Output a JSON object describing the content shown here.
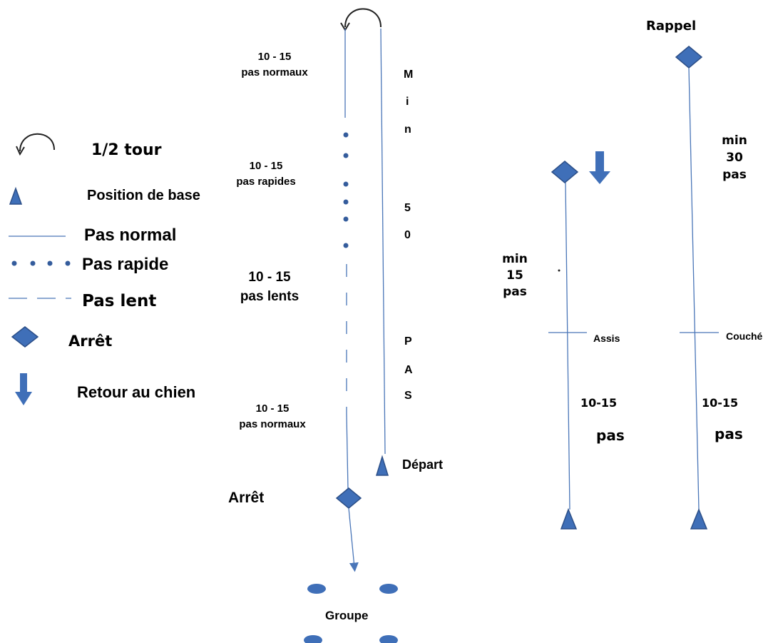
{
  "colors": {
    "line": "#4a76b8",
    "shape_fill": "#3f6fb8",
    "shape_stroke": "#2c4f88",
    "dot": "#345c9c",
    "text": "#000000"
  },
  "legend": {
    "half_turn": "1/2 tour",
    "base_position": "Position de base",
    "normal_step": "Pas normal",
    "fast_step": "Pas rapide",
    "slow_step": "Pas lent",
    "stop": "Arrêt",
    "return_to_dog": "Retour au chien"
  },
  "heel_course": {
    "segment_normal_top": {
      "count": "10 - 15",
      "label": "pas normaux"
    },
    "segment_fast": {
      "count": "10 - 15",
      "label": "pas rapides"
    },
    "segment_slow": {
      "count": "10 - 15",
      "label": "pas lents"
    },
    "segment_normal_bottom": {
      "count": "10 - 15",
      "label": "pas normaux"
    },
    "return_letters": [
      "M",
      "i",
      "n",
      "5",
      "0",
      "P",
      "A",
      "S"
    ],
    "start_label": "Départ",
    "stop_label": "Arrêt",
    "group_label": "Groupe"
  },
  "sit_exercise": {
    "top_label": "min\n15\npas",
    "mark_label": "Assis",
    "distance_count": "10-15",
    "distance_unit": "pas"
  },
  "down_exercise": {
    "title": "Rappel",
    "top_label": "min\n30\npas",
    "mark_label": "Couché",
    "distance_count": "10-15",
    "distance_unit": "pas"
  },
  "icons": [
    "half-turn-arrow-icon",
    "triangle-icon",
    "diamond-icon",
    "down-arrow-icon",
    "group-ellipse-icon"
  ]
}
